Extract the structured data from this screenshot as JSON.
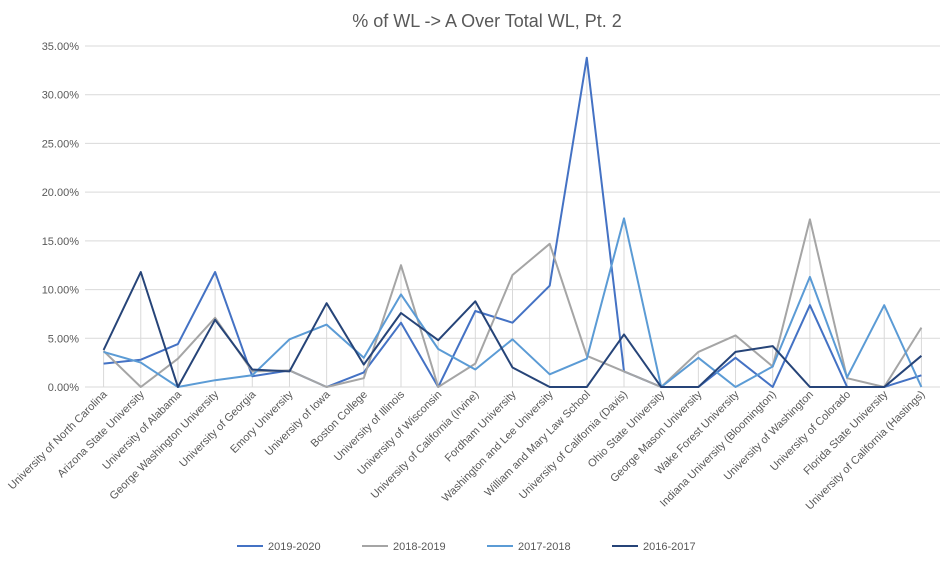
{
  "chart_data": {
    "type": "line",
    "title": "% of WL -> A Over Total WL, Pt. 2",
    "ylim": [
      0,
      35
    ],
    "yticks": [
      "0.00%",
      "5.00%",
      "10.00%",
      "15.00%",
      "20.00%",
      "25.00%",
      "30.00%",
      "35.00%"
    ],
    "ytick_values": [
      0,
      5,
      10,
      15,
      20,
      25,
      30,
      35
    ],
    "legend_position": "bottom",
    "categories": [
      "University of North Carolina",
      "Arizona State University",
      "University of Alabama",
      "George Washington University",
      "University of Georgia",
      "Emory University",
      "University of Iowa",
      "Boston College",
      "University of Illinois",
      "University of Wisconsin",
      "University of California (Irvine)",
      "Fordham University",
      "Washington and Lee University",
      "William and Mary Law School",
      "University of California (Davis)",
      "Ohio State University",
      "George Mason University",
      "Wake Forest University",
      "Indiana University (Bloomington)",
      "University of Washington",
      "University of Colorado",
      "Florida State University",
      "University of California (Hastings)"
    ],
    "series": [
      {
        "name": "2019-2020",
        "color": "#4472c4",
        "values": [
          2.4,
          2.8,
          4.4,
          11.8,
          1.1,
          1.7,
          0.0,
          1.5,
          6.6,
          0.0,
          7.8,
          6.6,
          10.4,
          33.8,
          1.6,
          0.0,
          0.0,
          3.0,
          0.0,
          8.4,
          0.0,
          0.0,
          1.2
        ]
      },
      {
        "name": "2018-2019",
        "color": "#a5a5a5",
        "values": [
          3.7,
          0.0,
          2.9,
          7.1,
          1.6,
          1.7,
          0.0,
          0.9,
          12.5,
          0.0,
          2.4,
          11.5,
          14.7,
          3.2,
          1.6,
          0.0,
          3.6,
          5.3,
          2.1,
          17.2,
          0.9,
          0.0,
          6.1
        ]
      },
      {
        "name": "2017-2018",
        "color": "#5b9bd5",
        "values": [
          3.6,
          2.5,
          0.0,
          0.7,
          1.2,
          4.9,
          6.4,
          3.0,
          9.5,
          3.9,
          1.8,
          4.9,
          1.3,
          2.9,
          17.3,
          0.0,
          3.0,
          0.0,
          2.1,
          11.3,
          1.0,
          8.4,
          0.0
        ]
      },
      {
        "name": "2016-2017",
        "color": "#264478",
        "values": [
          3.8,
          11.8,
          0.0,
          6.9,
          1.8,
          1.6,
          8.6,
          2.3,
          7.6,
          4.8,
          8.8,
          2.0,
          0.0,
          0.0,
          5.4,
          0.0,
          0.0,
          3.6,
          4.2,
          0.0,
          0.0,
          0.0,
          3.2
        ]
      }
    ]
  }
}
